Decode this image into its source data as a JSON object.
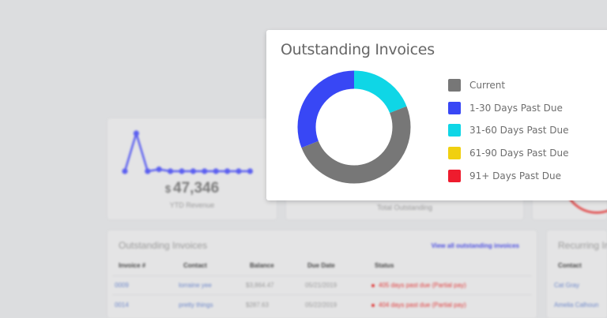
{
  "background": {
    "revenue_card": {
      "currency": "$",
      "amount": "47,346",
      "label": "YTD Revenue",
      "sparkline": [
        0.0,
        1.0,
        0.0,
        0.05,
        0.0,
        0.0,
        0.0,
        0.0,
        0.0,
        0.0,
        0.0,
        0.0
      ]
    },
    "total_card": {
      "label": "Total Outstanding"
    },
    "invoices_table": {
      "title": "Outstanding Invoices",
      "view_all_link": "View all outstanding invoices",
      "columns": [
        "Invoice #",
        "Contact",
        "Balance",
        "Due Date",
        "Status"
      ],
      "rows": [
        {
          "invoice": "0009",
          "contact": "lorraine yee",
          "balance": "$3,864.47",
          "due": "05/21/2019",
          "status": "405 days past due (Partial pay)"
        },
        {
          "invoice": "0014",
          "contact": "pretty things",
          "balance": "$287.63",
          "due": "05/22/2019",
          "status": "404 days past due (Partial pay)"
        }
      ]
    },
    "recurring": {
      "title": "Recurring In",
      "column": "Contact",
      "rows": [
        "Cat Gray",
        "Amelia Calhoun"
      ]
    }
  },
  "popup": {
    "title": "Outstanding Invoices"
  },
  "chart_data": {
    "type": "pie",
    "title": "Outstanding Invoices",
    "donut": true,
    "categories": [
      "Current",
      "1-30 Days Past Due",
      "31-60 Days Past Due",
      "61-90 Days Past Due",
      "91+ Days Past Due"
    ],
    "values": [
      50,
      31,
      19,
      0,
      0
    ],
    "colors": [
      "#777777",
      "#3847f5",
      "#0fd6e6",
      "#f0d010",
      "#ee1c2e"
    ],
    "legend_position": "right"
  }
}
